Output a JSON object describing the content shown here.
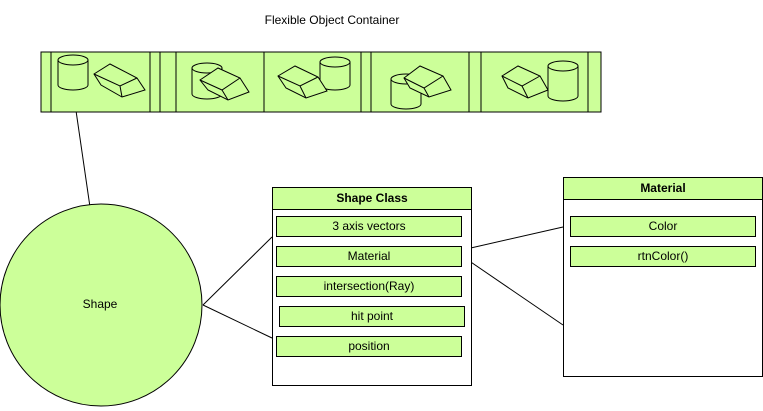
{
  "title": "Flexible Object Container",
  "shape_label": "Shape",
  "shape_class": {
    "header": "Shape Class",
    "fields": [
      "3 axis vectors",
      "Material",
      "intersection(Ray)",
      "hit point",
      "position"
    ]
  },
  "material": {
    "header": "Material",
    "fields": [
      "Color",
      "rtnColor()"
    ]
  },
  "colors": {
    "fill": "#ccff99",
    "stroke": "#000000"
  },
  "container_cells": [
    [
      "cylinder-icon",
      "cube-icon"
    ],
    [
      "cylinder-cube-overlap-icon"
    ],
    [
      "cube-cylinder-icon"
    ],
    [
      "cylinder-cube-overlap-icon"
    ],
    [
      "cube-cylinder-icon"
    ]
  ]
}
